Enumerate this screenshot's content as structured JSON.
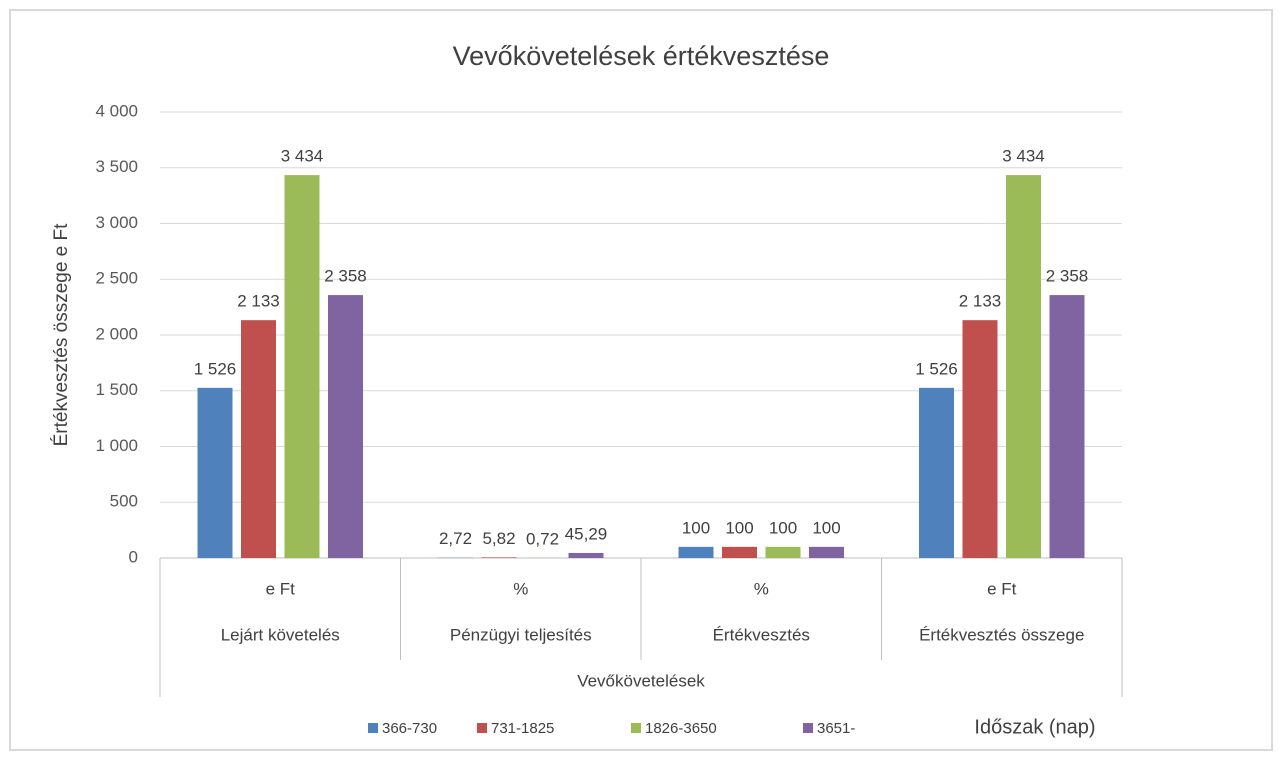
{
  "chart_data": {
    "type": "bar",
    "title": "Vevőkövetelések értékvesztése",
    "y_label": "Értékvesztés összege e Ft",
    "categories": [
      "Lejárt követelés",
      "Pénzügyi teljesítés",
      "Értékvesztés",
      "Értékvesztés összege"
    ],
    "category_units": [
      "e Ft",
      "%",
      "%",
      "e Ft"
    ],
    "category_group": "Vevőkövetelések",
    "legend_title": "Időszak (nap)",
    "legend": "bottom",
    "grid": true,
    "ylim": [
      0,
      4000
    ],
    "yticks": [
      0,
      500,
      {
        "value": 1000,
        "label": "1 000"
      },
      {
        "value": 1500,
        "label": "1 500"
      },
      {
        "value": 2000,
        "label": "2 000"
      },
      {
        "value": 2500,
        "label": "2 500"
      },
      {
        "value": 3000,
        "label": "3 000"
      },
      {
        "value": 3500,
        "label": "3 500"
      },
      {
        "value": 4000,
        "label": "4 000"
      }
    ],
    "series": [
      {
        "name": "366-730",
        "color": "#4f81bd",
        "values": [
          1526,
          2.72,
          100,
          1526
        ],
        "value_labels": [
          "1 526",
          "2,72",
          "100",
          "1 526"
        ]
      },
      {
        "name": "731-1825",
        "color": "#c0504d",
        "values": [
          2133,
          5.82,
          100,
          2133
        ],
        "value_labels": [
          "2 133",
          "5,82",
          "100",
          "2 133"
        ]
      },
      {
        "name": "1826-3650",
        "color": "#9bbb59",
        "values": [
          3434,
          0.72,
          100,
          3434
        ],
        "value_labels": [
          "3 434",
          "0,72",
          "100",
          "3 434"
        ]
      },
      {
        "name": "3651-",
        "color": "#8064a2",
        "values": [
          2358,
          45.29,
          100,
          2358
        ],
        "value_labels": [
          "2 358",
          "45,29",
          "100",
          "2 358"
        ]
      }
    ]
  }
}
